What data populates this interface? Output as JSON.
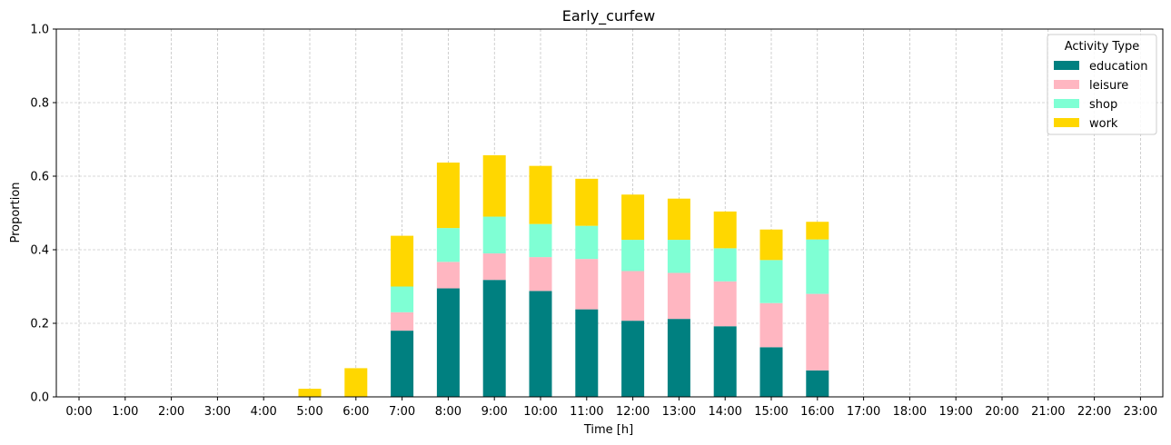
{
  "chart_data": {
    "type": "bar",
    "stacked": true,
    "title": "Early_curfew",
    "xlabel": "Time [h]",
    "ylabel": "Proportion",
    "ylim": [
      0,
      1.0
    ],
    "yticks": [
      "0.0",
      "0.2",
      "0.4",
      "0.6",
      "0.8",
      "1.0"
    ],
    "grid": true,
    "legend_placement": "top-right",
    "legend_title": "Activity Type",
    "categories": [
      "0:00",
      "1:00",
      "2:00",
      "3:00",
      "4:00",
      "5:00",
      "6:00",
      "7:00",
      "8:00",
      "9:00",
      "10:00",
      "11:00",
      "12:00",
      "13:00",
      "14:00",
      "15:00",
      "16:00",
      "17:00",
      "18:00",
      "19:00",
      "20:00",
      "21:00",
      "22:00",
      "23:00"
    ],
    "series": [
      {
        "name": "education",
        "color": "#008080",
        "values": [
          0,
          0,
          0,
          0,
          0,
          0,
          0,
          0.18,
          0.295,
          0.318,
          0.288,
          0.238,
          0.207,
          0.212,
          0.192,
          0.135,
          0.072,
          0,
          0,
          0,
          0,
          0,
          0,
          0
        ]
      },
      {
        "name": "leisure",
        "color": "#FFB6C1",
        "values": [
          0,
          0,
          0,
          0,
          0,
          0,
          0,
          0.05,
          0.072,
          0.072,
          0.092,
          0.137,
          0.135,
          0.125,
          0.122,
          0.12,
          0.208,
          0,
          0,
          0,
          0,
          0,
          0,
          0
        ]
      },
      {
        "name": "shop",
        "color": "#7FFFD4",
        "values": [
          0,
          0,
          0,
          0,
          0,
          0,
          0,
          0.07,
          0.092,
          0.1,
          0.09,
          0.09,
          0.085,
          0.09,
          0.09,
          0.117,
          0.148,
          0,
          0,
          0,
          0,
          0,
          0,
          0
        ]
      },
      {
        "name": "work",
        "color": "#FFD700",
        "values": [
          0,
          0,
          0,
          0,
          0,
          0.022,
          0.078,
          0.138,
          0.178,
          0.167,
          0.158,
          0.128,
          0.123,
          0.112,
          0.1,
          0.083,
          0.048,
          0,
          0,
          0,
          0,
          0,
          0,
          0
        ]
      }
    ]
  }
}
